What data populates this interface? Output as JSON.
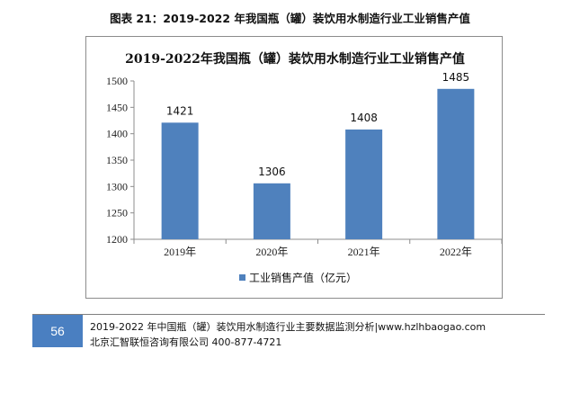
{
  "figure_caption": "图表 21：2019-2022 年我国瓶（罐）装饮用水制造行业工业销售产值",
  "chart_data": {
    "type": "bar",
    "title": "2019-2022年我国瓶（罐）装饮用水制造行业工业销售产值",
    "categories": [
      "2019年",
      "2020年",
      "2021年",
      "2022年"
    ],
    "series": [
      {
        "name": "工业销售产值（亿元）",
        "values": [
          1421,
          1306,
          1408,
          1485
        ],
        "color": "#4f81bd"
      }
    ],
    "data_labels": [
      "1421",
      "1306",
      "1408",
      "1485"
    ],
    "y_ticks": [
      "1200",
      "1250",
      "1300",
      "1350",
      "1400",
      "1450",
      "1500"
    ],
    "ylim": [
      1200,
      1500
    ],
    "xlabel": "",
    "ylabel": "",
    "grid": false,
    "legend": "bottom"
  },
  "footer": {
    "page_number": "56",
    "line1": "2019-2022 年中国瓶（罐）装饮用水制造行业主要数据监测分析|www.hzlhbaogao.com",
    "line2": "北京汇智联恒咨询有限公司  400-877-4721"
  }
}
